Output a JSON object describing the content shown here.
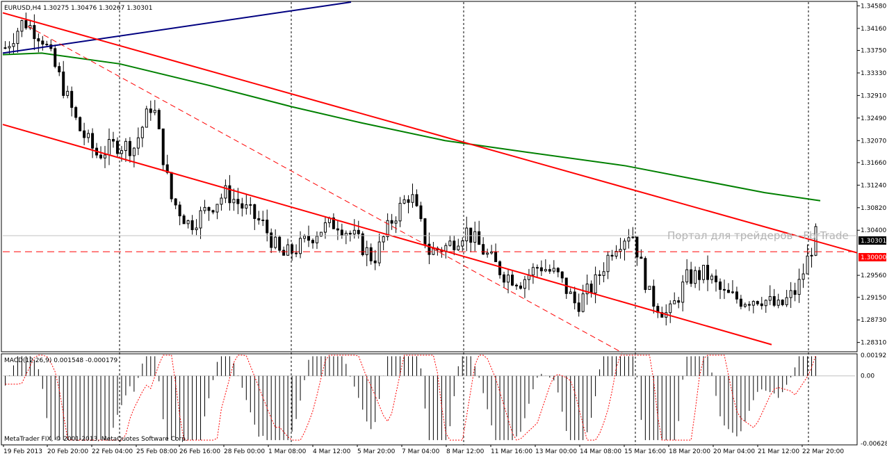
{
  "chart_title": "EURUSD,H4  1.30275 1.30476 1.30267 1.30301",
  "indicator_title": "MACD(12,26,9) 0.001548 -0.000179",
  "copyright": "MetaTrader FIX, © 2001-2013, MetaQuotes Software Corp.",
  "watermark": "Портал для трейдеров - FbrTrade",
  "price_ticks": [
    "1.34580",
    "1.34160",
    "1.33750",
    "1.33330",
    "1.32910",
    "1.32490",
    "1.32070",
    "1.31660",
    "1.31240",
    "1.30820",
    "1.30400",
    "1.29560",
    "1.29150",
    "1.28730",
    "1.28310"
  ],
  "current_price_tag": "1.30301",
  "level_tag": "1.30000",
  "macd_ticks": [
    "0.001921",
    "0.00",
    "-0.006281"
  ],
  "time_ticks": [
    "19 Feb 2013",
    "20 Feb 20:00",
    "22 Feb 04:00",
    "25 Feb 08:00",
    "26 Feb 16:00",
    "28 Feb 00:00",
    "1 Mar 08:00",
    "4 Mar 12:00",
    "5 Mar 20:00",
    "7 Mar 04:00",
    "8 Mar 12:00",
    "11 Mar 16:00",
    "13 Mar 00:00",
    "14 Mar 08:00",
    "15 Mar 16:00",
    "18 Mar 20:00",
    "20 Mar 04:00",
    "21 Mar 12:00",
    "22 Mar 20:00"
  ],
  "colors": {
    "channel": "#ff0000",
    "trendline": "#000080",
    "moving_average": "#008000",
    "macd_signal": "#ff0000",
    "bull_body": "#ffffff",
    "bear_body": "#000000"
  },
  "chart_data": {
    "type": "candlestick",
    "symbol": "EURUSD",
    "timeframe": "H4",
    "ylim": [
      1.2815,
      1.3465
    ],
    "x_labels": [
      "19 Feb 2013",
      "20 Feb 20:00",
      "22 Feb 04:00",
      "25 Feb 08:00",
      "26 Feb 16:00",
      "28 Feb 00:00",
      "1 Mar 08:00",
      "4 Mar 12:00",
      "5 Mar 20:00",
      "7 Mar 04:00",
      "8 Mar 12:00",
      "11 Mar 16:00",
      "13 Mar 00:00",
      "14 Mar 08:00",
      "15 Mar 16:00",
      "18 Mar 20:00",
      "20 Mar 04:00",
      "21 Mar 12:00",
      "22 Mar 20:00"
    ],
    "close_path": [
      1.338,
      1.343,
      1.34,
      1.332,
      1.323,
      1.318,
      1.32,
      1.3195,
      1.328,
      1.31,
      1.305,
      1.308,
      1.311,
      1.308,
      1.305,
      1.299,
      1.301,
      1.304,
      1.3055,
      1.3025,
      1.2985,
      1.306,
      1.311,
      1.3,
      1.301,
      1.304,
      1.3,
      1.296,
      1.2945,
      1.2975,
      1.2955,
      1.29,
      1.294,
      1.301,
      1.304,
      1.2915,
      1.288,
      1.295,
      1.296,
      1.292,
      1.291,
      1.2915,
      1.2895,
      1.293,
      1.303
    ],
    "trend_channel_upper": {
      "from": [
        "19 Feb 2013",
        1.3445
      ],
      "to": [
        "22 Mar 20:00",
        1.3
      ]
    },
    "trend_channel_lower": {
      "from": [
        "19 Feb 2013",
        1.3237
      ],
      "to": [
        "21 Mar 12:00",
        1.2827
      ]
    },
    "horizontal_level": 1.3,
    "macd": {
      "name": "MACD(12,26,9)",
      "main": 0.001548,
      "signal": -0.000179,
      "ylim": [
        -0.006281,
        0.001921
      ]
    }
  }
}
